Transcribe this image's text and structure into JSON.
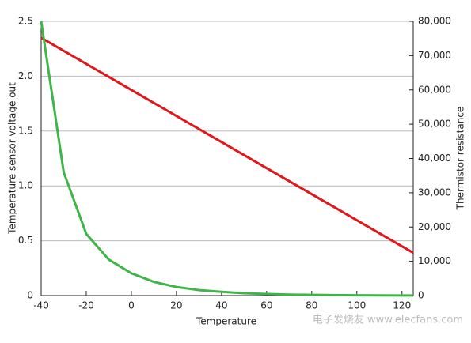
{
  "chart_data": {
    "type": "line",
    "x_label": "Temperature",
    "y_label": "Temperature sensor voltage out",
    "y2_label": "Thermistor resistance",
    "watermark": "电子发烧友 www.elecfans.com",
    "xlim": [
      -40,
      125
    ],
    "xticks": [
      -40,
      -20,
      0,
      20,
      40,
      60,
      80,
      100,
      120
    ],
    "ylim": [
      0,
      2.5
    ],
    "yticks": [
      0,
      0.5,
      {
        "value": 1,
        "label": "1.0"
      },
      1.5,
      {
        "value": 2,
        "label": "2.0"
      },
      2.5
    ],
    "y2lim": [
      0,
      80000
    ],
    "y2ticks": [
      0,
      {
        "value": 10000,
        "label": "10,000"
      },
      {
        "value": 20000,
        "label": "20,000"
      },
      {
        "value": 30000,
        "label": "30,000"
      },
      {
        "value": 40000,
        "label": "40,000"
      },
      {
        "value": 50000,
        "label": "50,000"
      },
      {
        "value": 60000,
        "label": "60,000"
      },
      {
        "value": 70000,
        "label": "70,000"
      },
      {
        "value": 80000,
        "label": "80,000"
      }
    ],
    "grid": true,
    "series": [
      {
        "color": "#e0161b",
        "x": [
          -40,
          125
        ],
        "values": [
          2.35,
          0.39
        ]
      },
      {
        "color": "#3fb549",
        "axis": "y2",
        "x": [
          -40,
          -30,
          -20,
          -10,
          0,
          10,
          20,
          30,
          40,
          50,
          60,
          70,
          80,
          90,
          100,
          110,
          120,
          125
        ],
        "values": [
          80000,
          36000,
          18000,
          10500,
          6500,
          4000,
          2500,
          1600,
          1100,
          700,
          450,
          300,
          200,
          130,
          90,
          60,
          40,
          30
        ]
      }
    ]
  }
}
